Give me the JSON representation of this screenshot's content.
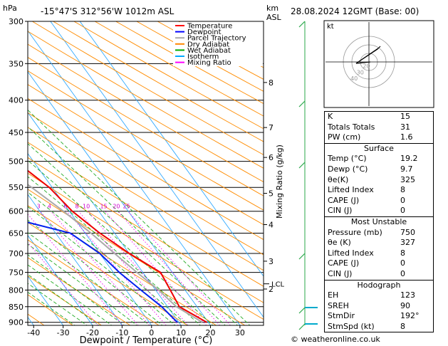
{
  "header": {
    "pressure_unit": "hPa",
    "location": "-15°47'S  312°56'W  1012m  ASL",
    "height_unit_1": "km",
    "height_unit_2": "ASL",
    "datetime": "28.08.2024  12GMT  (Base: 00)"
  },
  "footer": "© weatheronline.co.uk",
  "chart_data": {
    "type": "line",
    "subtype": "skew-T log-P",
    "xlabel": "Dewpoint / Temperature (°C)",
    "ylabel": "hPa",
    "mixing_ratio_label": "Mixing Ratio (g/kg)",
    "x_ticks": [
      -40,
      -30,
      -20,
      -10,
      0,
      10,
      20,
      30
    ],
    "y_ticks": [
      300,
      350,
      400,
      450,
      500,
      550,
      600,
      650,
      700,
      750,
      800,
      850,
      900
    ],
    "km_ticks": [
      {
        "p": 375,
        "label": "8"
      },
      {
        "p": 442,
        "label": "7"
      },
      {
        "p": 493,
        "label": "6"
      },
      {
        "p": 562,
        "label": "5"
      },
      {
        "p": 630,
        "label": "4"
      },
      {
        "p": 720,
        "label": "3"
      },
      {
        "p": 797,
        "label": "2"
      }
    ],
    "lcl": {
      "p": 782,
      "label": "LCL"
    },
    "mixing_ratio_values": [
      "1",
      "2",
      "3",
      "4",
      "6",
      "8",
      "10",
      "15",
      "20",
      "25"
    ],
    "legend": [
      {
        "name": "Temperature",
        "color": "#ff0000"
      },
      {
        "name": "Dewpoint",
        "color": "#0000ff"
      },
      {
        "name": "Parcel Trajectory",
        "color": "#aaaaaa"
      },
      {
        "name": "Dry Adiabat",
        "color": "#ff8800"
      },
      {
        "name": "Wet Adiabat",
        "color": "#00aa00"
      },
      {
        "name": "Isotherm",
        "color": "#00aaff"
      },
      {
        "name": "Mixing Ratio",
        "color": "#ff00ff"
      }
    ],
    "temperature": [
      [
        300,
        -36
      ],
      [
        350,
        -27
      ],
      [
        400,
        -20
      ],
      [
        450,
        -12
      ],
      [
        500,
        -6
      ],
      [
        550,
        -1
      ],
      [
        600,
        1
      ],
      [
        650,
        5
      ],
      [
        700,
        10
      ],
      [
        750,
        16
      ],
      [
        800,
        15
      ],
      [
        850,
        14
      ],
      [
        900,
        19.5
      ]
    ],
    "dewpoint": [
      [
        300,
        -57
      ],
      [
        350,
        -53
      ],
      [
        400,
        -48
      ],
      [
        450,
        -50
      ],
      [
        500,
        -43
      ],
      [
        550,
        -38
      ],
      [
        600,
        -29
      ],
      [
        650,
        -5
      ],
      [
        700,
        0
      ],
      [
        750,
        2
      ],
      [
        800,
        5
      ],
      [
        850,
        8
      ],
      [
        900,
        9.5
      ]
    ],
    "parcel": [
      [
        300,
        -46
      ],
      [
        350,
        -36
      ],
      [
        400,
        -27
      ],
      [
        450,
        -19
      ],
      [
        500,
        -13
      ],
      [
        550,
        -7
      ],
      [
        600,
        -2
      ],
      [
        650,
        2
      ],
      [
        700,
        5
      ],
      [
        750,
        8
      ],
      [
        800,
        11
      ],
      [
        850,
        13
      ],
      [
        900,
        18
      ]
    ],
    "x_range": [
      -42,
      38
    ],
    "p_range": [
      300,
      910
    ],
    "skew": 0.72
  },
  "hodograph": {
    "label": "kt",
    "ring_labels": [
      "40",
      "30",
      "20"
    ]
  },
  "indices": {
    "basic": [
      {
        "label": "K",
        "value": "15"
      },
      {
        "label": "Totals Totals",
        "value": "31"
      },
      {
        "label": "PW (cm)",
        "value": "1.6"
      }
    ],
    "surface_title": "Surface",
    "surface": [
      {
        "label": "Temp (°C)",
        "value": "19.2"
      },
      {
        "label": "Dewp (°C)",
        "value": "9.7"
      },
      {
        "label": "θe(K)",
        "value": "325"
      },
      {
        "label": "Lifted Index",
        "value": "8"
      },
      {
        "label": "CAPE (J)",
        "value": "0"
      },
      {
        "label": "CIN (J)",
        "value": "0"
      }
    ],
    "unstable_title": "Most Unstable",
    "unstable": [
      {
        "label": "Pressure (mb)",
        "value": "750"
      },
      {
        "label": "θe (K)",
        "value": "327"
      },
      {
        "label": "Lifted Index",
        "value": "8"
      },
      {
        "label": "CAPE (J)",
        "value": "0"
      },
      {
        "label": "CIN (J)",
        "value": "0"
      }
    ],
    "hodo_title": "Hodograph",
    "hodo": [
      {
        "label": "EH",
        "value": "123"
      },
      {
        "label": "SREH",
        "value": "90"
      },
      {
        "label": "StmDir",
        "value": "192°"
      },
      {
        "label": "StmSpd (kt)",
        "value": "8"
      }
    ]
  }
}
